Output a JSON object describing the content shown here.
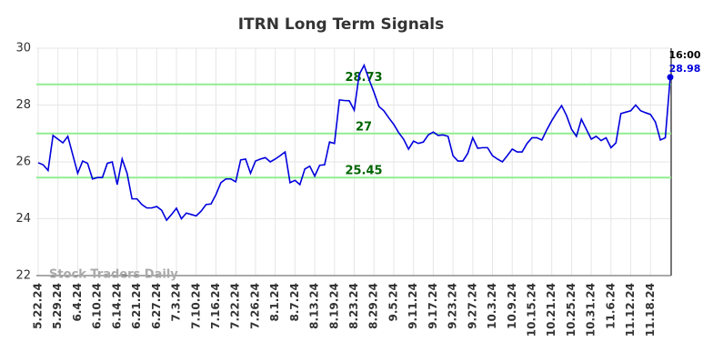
{
  "chart_data": {
    "type": "line",
    "title": "ITRN Long Term Signals",
    "watermark": "Stock Traders Daily",
    "last_time": "16:00",
    "categories": [
      "5.22.24",
      null,
      null,
      null,
      "5.29.24",
      null,
      null,
      null,
      "6.4.24",
      null,
      null,
      null,
      "6.10.24",
      null,
      null,
      null,
      "6.14.24",
      null,
      null,
      null,
      "6.21.24",
      null,
      null,
      null,
      "6.27.24",
      null,
      null,
      null,
      "7.3.24",
      null,
      null,
      null,
      "7.10.24",
      null,
      null,
      null,
      "7.16.24",
      null,
      null,
      null,
      "7.22.24",
      null,
      null,
      null,
      "7.26.24",
      null,
      null,
      null,
      "8.1.24",
      null,
      null,
      null,
      "8.7.24",
      null,
      null,
      null,
      "8.13.24",
      null,
      null,
      null,
      "8.19.24",
      null,
      null,
      null,
      "8.23.24",
      null,
      null,
      null,
      "8.29.24",
      null,
      null,
      null,
      "9.5.24",
      null,
      null,
      null,
      "9.11.24",
      null,
      null,
      null,
      "9.17.24",
      null,
      null,
      null,
      "9.23.24",
      null,
      null,
      null,
      "9.27.24",
      null,
      null,
      null,
      "10.3.24",
      null,
      null,
      null,
      "10.9.24",
      null,
      null,
      null,
      "10.15.24",
      null,
      null,
      null,
      "10.21.24",
      null,
      null,
      null,
      "10.25.24",
      null,
      null,
      null,
      "10.31.24",
      null,
      null,
      null,
      "11.6.24",
      null,
      null,
      null,
      "11.12.24",
      null,
      null,
      null,
      "11.18.24",
      null,
      null,
      null,
      null
    ],
    "values": [
      25.97,
      25.9,
      25.7,
      26.93,
      26.8,
      26.67,
      26.9,
      26.25,
      25.6,
      26.03,
      25.95,
      25.4,
      25.45,
      25.45,
      25.95,
      26.0,
      25.2,
      26.1,
      25.6,
      24.7,
      24.7,
      24.5,
      24.38,
      24.38,
      24.43,
      24.3,
      23.95,
      24.15,
      24.37,
      24.0,
      24.2,
      24.15,
      24.1,
      24.27,
      24.5,
      24.52,
      24.85,
      25.27,
      25.4,
      25.4,
      25.3,
      26.07,
      26.1,
      25.6,
      26.03,
      26.1,
      26.15,
      26.0,
      26.1,
      26.22,
      26.35,
      25.27,
      25.35,
      25.2,
      25.75,
      25.85,
      25.5,
      25.88,
      25.9,
      26.7,
      26.65,
      28.18,
      28.16,
      28.15,
      27.82,
      29.07,
      29.4,
      28.9,
      28.45,
      27.95,
      27.8,
      27.55,
      27.32,
      27.03,
      26.8,
      26.45,
      26.73,
      26.65,
      26.7,
      26.95,
      27.05,
      26.93,
      26.95,
      26.9,
      26.22,
      26.03,
      26.03,
      26.3,
      26.85,
      26.48,
      26.5,
      26.5,
      26.22,
      26.1,
      26.0,
      26.22,
      26.45,
      26.35,
      26.35,
      26.65,
      26.85,
      26.85,
      26.77,
      27.13,
      27.45,
      27.73,
      27.98,
      27.63,
      27.15,
      26.9,
      27.5,
      27.15,
      26.8,
      26.9,
      26.75,
      26.85,
      26.5,
      26.67,
      27.7,
      27.75,
      27.8,
      28.0,
      27.8,
      27.73,
      27.67,
      27.4,
      26.77,
      26.85,
      28.98
    ],
    "color": "#0000dd",
    "hlines": [
      {
        "value": 28.73,
        "color": "#90ee90"
      },
      {
        "value": 27,
        "color": "#90ee90"
      },
      {
        "value": 25.45,
        "color": "#90ee90"
      }
    ],
    "ylim": [
      22,
      30
    ],
    "yticks": [
      22,
      24,
      26,
      28,
      30
    ],
    "grid": true
  }
}
